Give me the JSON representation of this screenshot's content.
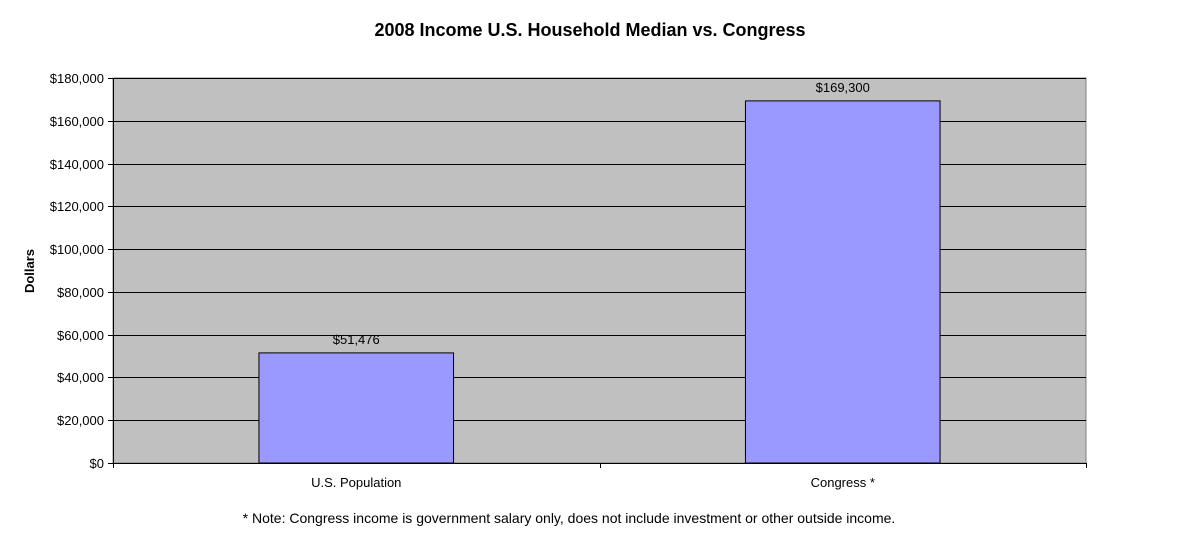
{
  "chart_data": {
    "type": "bar",
    "title": "2008 Income U.S. Household Median vs. Congress",
    "xlabel": "",
    "ylabel": "Dollars",
    "categories": [
      "U.S. Population",
      "Congress *"
    ],
    "values": [
      51476,
      169300
    ],
    "value_labels": [
      "$51,476",
      "$169,300"
    ],
    "ylim": [
      0,
      180000
    ],
    "y_ticks": [
      0,
      20000,
      40000,
      60000,
      80000,
      100000,
      120000,
      140000,
      160000,
      180000
    ],
    "y_tick_labels": [
      "$0",
      "$20,000",
      "$40,000",
      "$60,000",
      "$80,000",
      "$100,000",
      "$120,000",
      "$140,000",
      "$160,000",
      "$180,000"
    ],
    "grid": true,
    "legend": "none",
    "note": "* Note: Congress income is government salary only, does not include investment or other outside income.",
    "colors": {
      "plot_background": "#c0c0c0",
      "bar_fill": "#9999ff",
      "bar_stroke": "#000000",
      "gridline": "#000000"
    }
  }
}
